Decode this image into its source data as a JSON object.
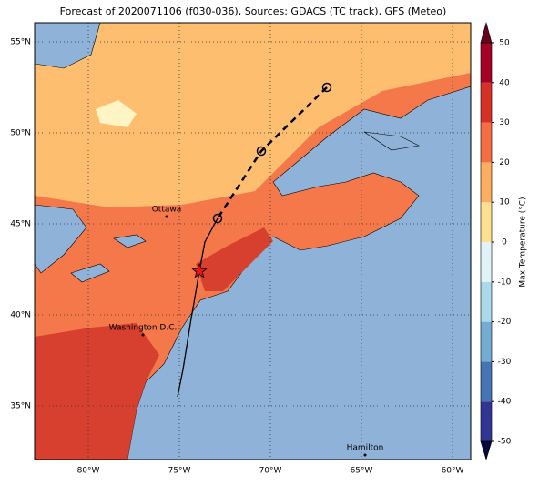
{
  "map": {
    "title": "Forecast of 2020071106 (f030-036), Sources: GDACS (TC track), GFS (Meteo)",
    "xlim": [
      -82.95,
      -59.0
    ],
    "ylim": [
      32.05,
      56.05
    ],
    "xticks": [
      {
        "value": -80,
        "label": "80°W"
      },
      {
        "value": -75,
        "label": "75°W"
      },
      {
        "value": -70,
        "label": "70°W"
      },
      {
        "value": -65,
        "label": "65°W"
      },
      {
        "value": -60,
        "label": "60°W"
      }
    ],
    "yticks": [
      {
        "value": 35,
        "label": "35°N"
      },
      {
        "value": 40,
        "label": "40°N"
      },
      {
        "value": 45,
        "label": "45°N"
      },
      {
        "value": 50,
        "label": "50°N"
      },
      {
        "value": 55,
        "label": "55°N"
      }
    ],
    "colorbar": {
      "label": "Max Temperature (°C)",
      "ticks": [
        -50,
        -40,
        -30,
        -20,
        -10,
        0,
        10,
        20,
        30,
        40,
        50
      ],
      "colors": [
        "#313695",
        "#4575b4",
        "#74add1",
        "#abd9e9",
        "#e0f3f8",
        "#fee090",
        "#fdae61",
        "#f46d43",
        "#d73027",
        "#a50026"
      ]
    },
    "cities": [
      {
        "name": "Ottawa",
        "lon": -75.7,
        "lat": 45.4
      },
      {
        "name": "Washington D.C.",
        "lon": -77.0,
        "lat": 38.9
      },
      {
        "name": "Hamilton",
        "lon": -64.8,
        "lat": 32.3
      }
    ],
    "track": {
      "forecast_lon": [
        -66.9,
        -70.5,
        -72.9
      ],
      "forecast_lat": [
        52.5,
        49.0,
        45.3
      ],
      "current_lon": -73.9,
      "current_lat": 42.4,
      "past_lon": [
        -72.9,
        -73.6,
        -73.9,
        -74.4,
        -74.8,
        -75.1
      ],
      "past_lat": [
        45.3,
        44.0,
        42.4,
        39.5,
        37.0,
        35.5
      ]
    }
  }
}
